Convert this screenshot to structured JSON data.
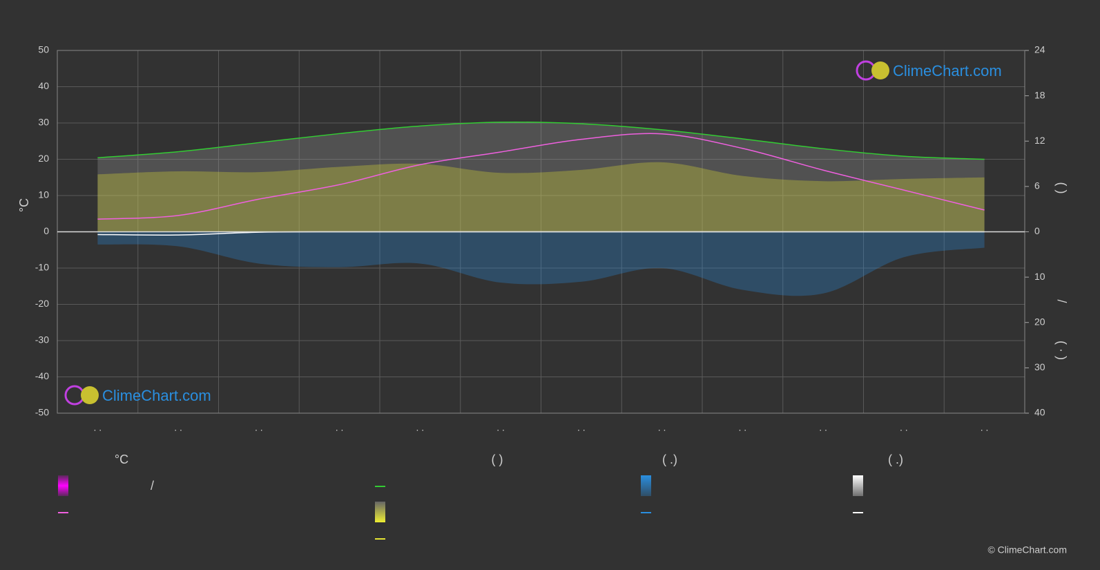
{
  "chart_data": {
    "type": "line",
    "y_label": "°C",
    "y2_label": "(          )",
    "axis_separator": "/",
    "y3_label": "( · )",
    "categories": [
      ". .",
      ". .",
      ". .",
      ". .",
      ". .",
      ". .",
      ". .",
      ". .",
      ". .",
      ". .",
      ". .",
      ". ."
    ],
    "ylim": [
      -50,
      50
    ],
    "yticks": [
      -50,
      -40,
      -30,
      -20,
      -10,
      0,
      10,
      20,
      30,
      40,
      50
    ],
    "y2lim": [
      -24,
      24
    ],
    "y2ticks": [
      0,
      6,
      12,
      18,
      24
    ],
    "y3lim": [
      40,
      -40
    ],
    "y3ticks": [
      10,
      20,
      30,
      40
    ],
    "grid": true,
    "series": [
      {
        "color": "#9a9a9a",
        "area": true,
        "axis": "y2",
        "values": [
          9.8,
          10.6,
          11.8,
          13.0,
          14.0,
          14.5,
          14.3,
          13.5,
          12.3,
          11.0,
          10.0,
          9.6
        ]
      },
      {
        "color": "#33cc33",
        "axis": "y2",
        "values": [
          9.8,
          10.6,
          11.8,
          13.0,
          14.0,
          14.5,
          14.3,
          13.5,
          12.3,
          11.0,
          10.0,
          9.6
        ]
      },
      {
        "color": "#e6e633",
        "area": true,
        "axis": "y2",
        "values": [
          7.6,
          8.0,
          7.9,
          8.6,
          9.0,
          7.8,
          8.2,
          9.2,
          7.4,
          6.7,
          7.0,
          7.2
        ]
      },
      {
        "color": "#f060e0",
        "values": [
          3.5,
          4.5,
          9,
          13,
          18.5,
          22,
          25.5,
          27,
          23,
          17,
          11.5,
          6
        ]
      },
      {
        "color": "#2a8fe0",
        "area": true,
        "axis": "y3",
        "values": [
          2.8,
          3.2,
          7.0,
          7.8,
          7.0,
          11.2,
          11.0,
          8.0,
          12.8,
          13.6,
          5.6,
          3.5
        ]
      },
      {
        "color": "#ffffff",
        "axis": "y3",
        "values": [
          0.6,
          0.7,
          0.1,
          0,
          0,
          0,
          0,
          0,
          0,
          0,
          0,
          0
        ]
      }
    ],
    "legend_headers": [
      "°C",
      "(          )",
      "(   .)",
      "(   .)"
    ],
    "legend_note": "/",
    "logo": "ClimeChart.com",
    "copyright": "© ClimeChart.com"
  }
}
